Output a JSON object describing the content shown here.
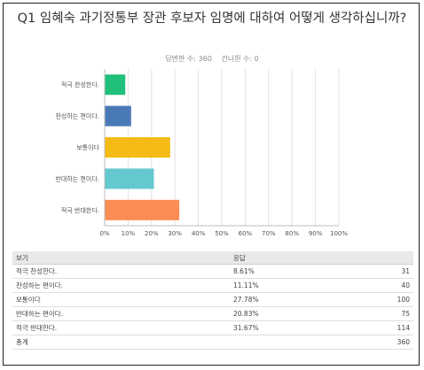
{
  "title": "Q1 임혜숙 과기정통부 장관 후보자 임명에 대하여 어떻게 생각하십니까?",
  "meta": {
    "answered": "답변한 수: 360",
    "skipped": "건너뛴 수: 0"
  },
  "chart_data": {
    "type": "bar",
    "orientation": "horizontal",
    "categories": [
      "적극 찬성한다.",
      "찬성하는 편이다.",
      "보통이다",
      "반대하는 편이다.",
      "적극 반대한다."
    ],
    "values": [
      8.61,
      11.11,
      27.78,
      20.83,
      31.67
    ],
    "colors": [
      "#1fc07a",
      "#4a79b8",
      "#f5bb15",
      "#64c8cf",
      "#fb8c54"
    ],
    "xlim": [
      0,
      100
    ],
    "xticks": [
      "0%",
      "10%",
      "20%",
      "30%",
      "40%",
      "50%",
      "60%",
      "70%",
      "80%",
      "90%",
      "100%"
    ],
    "grid": true
  },
  "table": {
    "headers": [
      "보기",
      "응답",
      ""
    ],
    "rows": [
      [
        "적극 찬성한다.",
        "8.61%",
        "31"
      ],
      [
        "찬성하는 편이다.",
        "11.11%",
        "40"
      ],
      [
        "보통이다",
        "27.78%",
        "100"
      ],
      [
        "반대하는 편이다.",
        "20.83%",
        "75"
      ],
      [
        "적극 반대한다.",
        "31.67%",
        "114"
      ]
    ],
    "total_label": "총계",
    "total_value": "360"
  }
}
